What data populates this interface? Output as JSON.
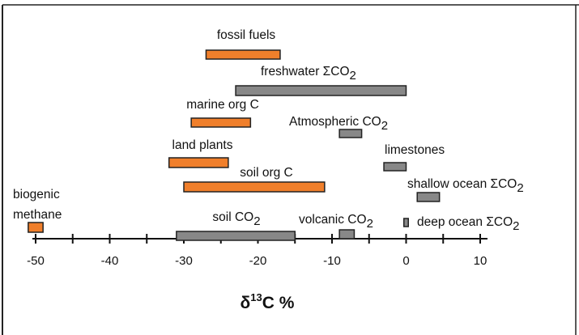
{
  "chart_data": {
    "type": "range-bar",
    "xlabel": "δ13C %",
    "xlim": [
      -50,
      10
    ],
    "x_ticks": [
      -50,
      -40,
      -30,
      -20,
      -10,
      0,
      10
    ],
    "x_tick_labels": [
      "-50",
      "-40",
      "-30",
      "-20",
      "-10",
      "0",
      "10"
    ],
    "colors": {
      "organic": "#f07f2b",
      "inorganic": "#888888"
    },
    "ranges": [
      {
        "label": "fossil fuels",
        "min": -27,
        "max": -17,
        "color": "organic"
      },
      {
        "label": "freshwater ΣCO2",
        "min": -23,
        "max": 0,
        "color": "inorganic"
      },
      {
        "label": "marine org C",
        "min": -29,
        "max": -21,
        "color": "organic"
      },
      {
        "label": "Atmospheric CO2",
        "min": -9,
        "max": -6,
        "color": "inorganic"
      },
      {
        "label": "land plants",
        "min": -32,
        "max": -24,
        "color": "organic"
      },
      {
        "label": "limestones",
        "min": -3,
        "max": 0,
        "color": "inorganic"
      },
      {
        "label": "soil org C",
        "min": -30,
        "max": -11,
        "color": "organic"
      },
      {
        "label": "shallow ocean ΣCO2",
        "min": 1.5,
        "max": 4.5,
        "color": "inorganic"
      },
      {
        "label": "biogenic methane",
        "min": -51,
        "max": -49,
        "color": "organic"
      },
      {
        "label": "soil CO2",
        "min": -31,
        "max": -15,
        "color": "inorganic"
      },
      {
        "label": "volcanic CO2",
        "min": -9,
        "max": -7,
        "color": "inorganic"
      },
      {
        "label": "deep ocean ΣCO2",
        "min": -0.3,
        "max": 0.3,
        "color": "inorganic"
      }
    ]
  }
}
